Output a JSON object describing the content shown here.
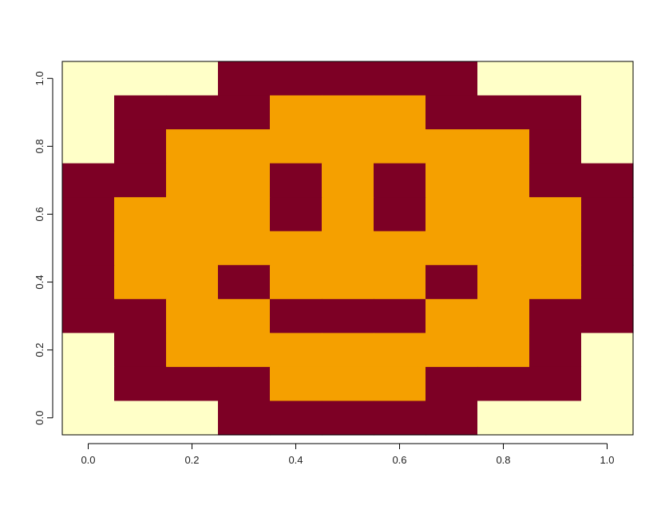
{
  "chart_data": {
    "type": "heatmap",
    "title": "",
    "xlabel": "",
    "ylabel": "",
    "xlim": [
      -0.05,
      1.05
    ],
    "ylim": [
      -0.05,
      1.05
    ],
    "x": [
      0.0,
      0.1,
      0.2,
      0.3,
      0.4,
      0.5,
      0.6,
      0.7,
      0.8,
      0.9,
      1.0
    ],
    "y": [
      1.0,
      0.9,
      0.8,
      0.7,
      0.6,
      0.5,
      0.4,
      0.3,
      0.2,
      0.1,
      0.0
    ],
    "x_ticks": [
      0.0,
      0.2,
      0.4,
      0.6,
      0.8,
      1.0
    ],
    "x_tick_labels": [
      "0.0",
      "0.2",
      "0.4",
      "0.6",
      "0.8",
      "1.0"
    ],
    "y_ticks": [
      0.0,
      0.2,
      0.4,
      0.6,
      0.8,
      1.0
    ],
    "y_tick_labels": [
      "0.0",
      "0.2",
      "0.4",
      "0.6",
      "0.8",
      "1.0"
    ],
    "grid": false,
    "legend": "none",
    "palette": [
      "#FFFFC8",
      "#F5A000",
      "#7D0025"
    ],
    "z": [
      [
        0,
        0,
        0,
        2,
        2,
        2,
        2,
        2,
        0,
        0,
        0
      ],
      [
        0,
        2,
        2,
        2,
        1,
        1,
        1,
        2,
        2,
        2,
        0
      ],
      [
        0,
        2,
        1,
        1,
        1,
        1,
        1,
        1,
        1,
        2,
        0
      ],
      [
        2,
        2,
        1,
        1,
        2,
        1,
        2,
        1,
        1,
        2,
        2
      ],
      [
        2,
        1,
        1,
        1,
        2,
        1,
        2,
        1,
        1,
        1,
        2
      ],
      [
        2,
        1,
        1,
        1,
        1,
        1,
        1,
        1,
        1,
        1,
        2
      ],
      [
        2,
        1,
        1,
        2,
        1,
        1,
        1,
        2,
        1,
        1,
        2
      ],
      [
        2,
        2,
        1,
        1,
        2,
        2,
        2,
        1,
        1,
        2,
        2
      ],
      [
        0,
        2,
        1,
        1,
        1,
        1,
        1,
        1,
        1,
        2,
        0
      ],
      [
        0,
        2,
        2,
        2,
        1,
        1,
        1,
        2,
        2,
        2,
        0
      ],
      [
        0,
        0,
        0,
        2,
        2,
        2,
        2,
        2,
        0,
        0,
        0
      ]
    ]
  }
}
